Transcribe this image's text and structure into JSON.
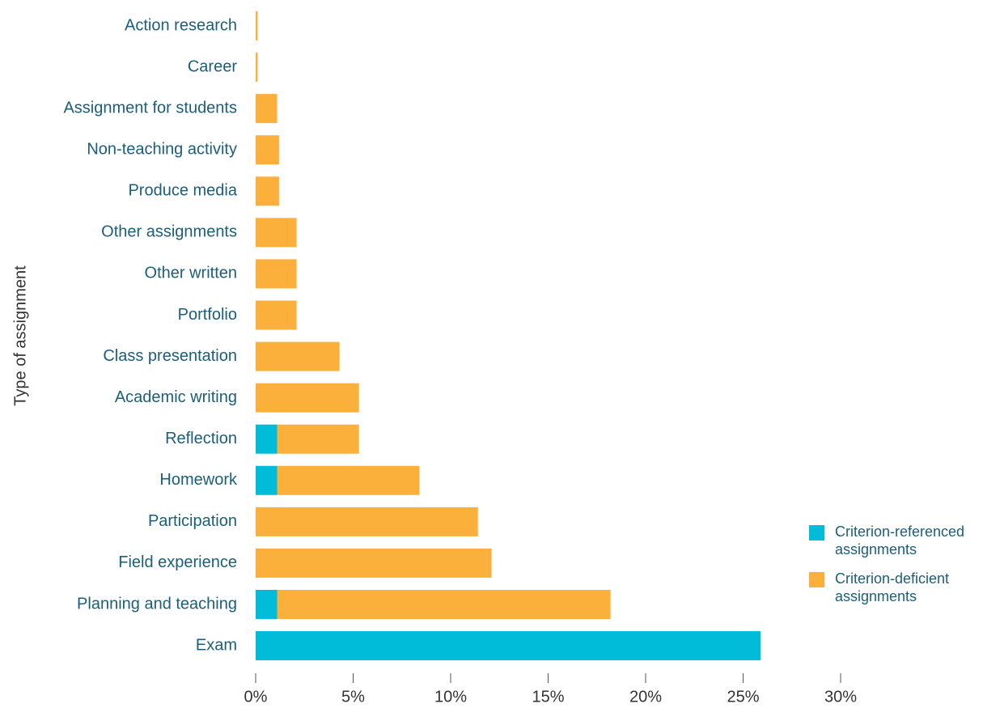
{
  "chart_data": {
    "type": "stacked-barh",
    "y_label": "Type of assignment",
    "categories": [
      "Action research",
      "Career",
      "Assignment for students",
      "Non-teaching activity",
      "Produce media",
      "Other assignments",
      "Other written",
      "Portfolio",
      "Class presentation",
      "Academic writing",
      "Reflection",
      "Homework",
      "Participation",
      "Field experience",
      "Planning and teaching",
      "Exam"
    ],
    "series": [
      {
        "name": "Criterion-referenced assignments",
        "color": "#00bcd9",
        "values": [
          0,
          0,
          0,
          0,
          0,
          0,
          0,
          0,
          0,
          0,
          1.1,
          1.1,
          0,
          0,
          1.1,
          25.9
        ]
      },
      {
        "name": "Criterion-deficient assignments",
        "color": "#fbb03b",
        "values": [
          0.1,
          0.1,
          1.1,
          1.2,
          1.2,
          2.1,
          2.1,
          2.1,
          4.3,
          5.3,
          4.2,
          7.3,
          11.4,
          12.1,
          17.1,
          0
        ]
      }
    ],
    "xlim": [
      0,
      30
    ],
    "xticks": [
      {
        "value": 0,
        "label": "0%"
      },
      {
        "value": 5,
        "label": "5%"
      },
      {
        "value": 10,
        "label": "10%"
      },
      {
        "value": 15,
        "label": "15%"
      },
      {
        "value": 20,
        "label": "20%"
      },
      {
        "value": 25,
        "label": "25%"
      },
      {
        "value": 30,
        "label": "30%"
      }
    ],
    "legend": "right"
  }
}
